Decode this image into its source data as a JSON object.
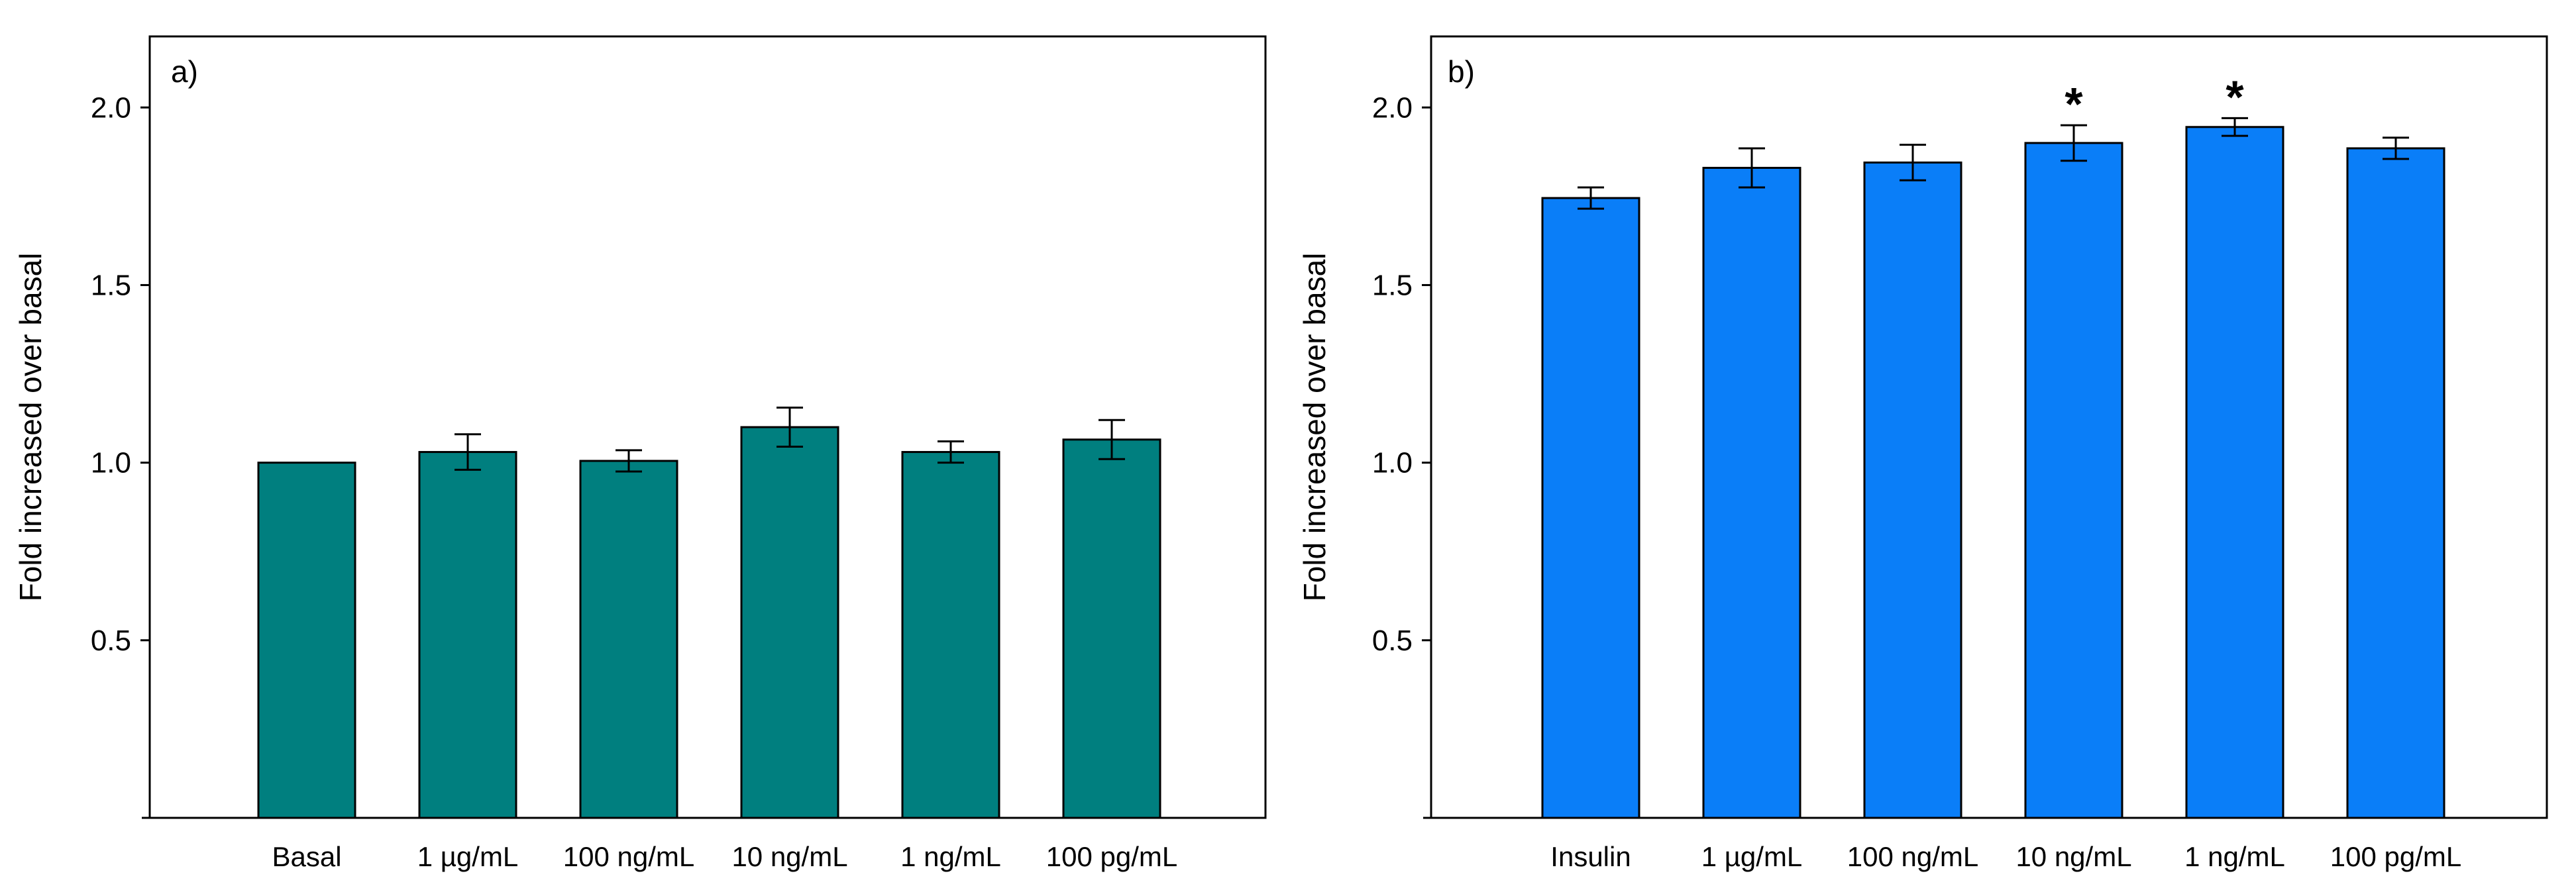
{
  "chart_data": [
    {
      "type": "bar",
      "panel_label": "a)",
      "ylabel": "Fold increased over basal",
      "xlabel": "",
      "ylim": [
        0,
        2.2
      ],
      "yticks": [
        0.5,
        1.0,
        1.5,
        2.0
      ],
      "ytick_labels": [
        "0.5",
        "1.0",
        "1.5",
        "2.0"
      ],
      "categories": [
        "Basal",
        "1 µg/mL",
        "100 ng/mL",
        "10 ng/mL",
        "1 ng/mL",
        "100 pg/mL"
      ],
      "values": [
        1.0,
        1.03,
        1.005,
        1.1,
        1.03,
        1.065
      ],
      "errors": [
        0.0,
        0.05,
        0.03,
        0.055,
        0.03,
        0.055
      ],
      "significance": [
        "",
        "",
        "",
        "",
        "",
        ""
      ],
      "color": "#007F7F"
    },
    {
      "type": "bar",
      "panel_label": "b)",
      "ylabel": "Fold increased over basal",
      "xlabel": "",
      "ylim": [
        0,
        2.2
      ],
      "yticks": [
        0.5,
        1.0,
        1.5,
        2.0
      ],
      "ytick_labels": [
        "0.5",
        "1.0",
        "1.5",
        "2.0"
      ],
      "categories": [
        "Insulin",
        "1 µg/mL",
        "100 ng/mL",
        "10 ng/mL",
        "1 ng/mL",
        "100 pg/mL"
      ],
      "values": [
        1.745,
        1.83,
        1.845,
        1.9,
        1.945,
        1.885
      ],
      "errors": [
        0.03,
        0.055,
        0.05,
        0.05,
        0.025,
        0.03
      ],
      "significance": [
        "",
        "",
        "",
        "*",
        "*",
        ""
      ],
      "color": "#0A7EF8"
    }
  ]
}
